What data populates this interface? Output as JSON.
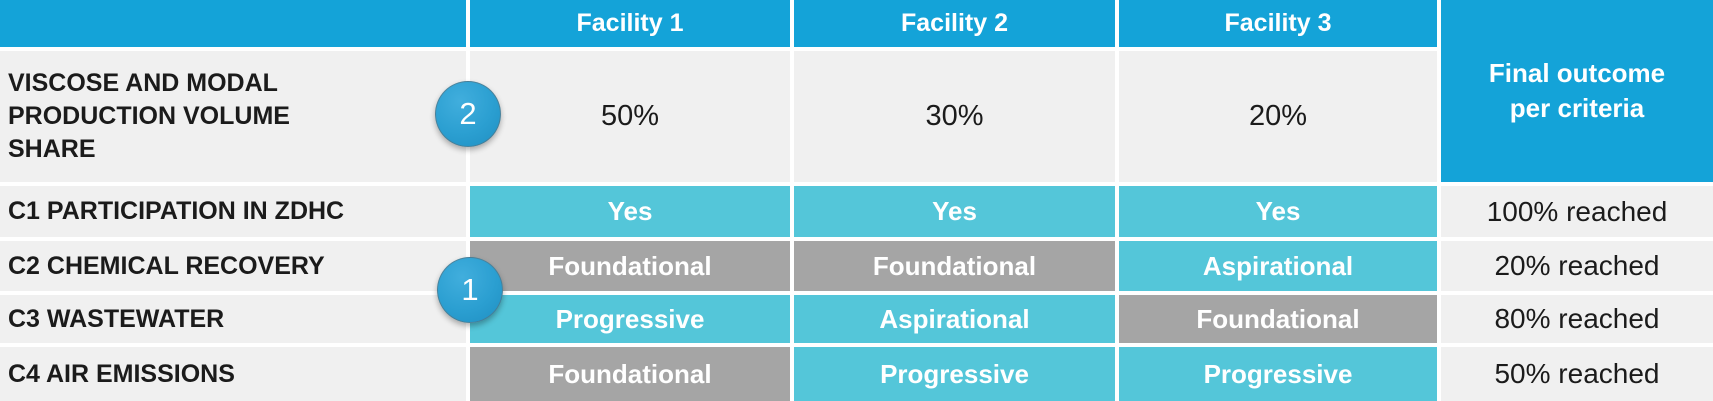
{
  "table": {
    "corner": "",
    "facility_headers": [
      "Facility 1",
      "Facility 2",
      "Facility 3"
    ],
    "final_header": "Final outcome\nper criteria",
    "volume_row": {
      "label": "VISCOSE AND MODAL\nPRODUCTION VOLUME\nSHARE",
      "values": [
        "50%",
        "30%",
        "20%"
      ]
    },
    "criteria_rows": [
      {
        "label": "C1 PARTICIPATION IN ZDHC",
        "cells": [
          {
            "text": "Yes",
            "variant": "teal"
          },
          {
            "text": "Yes",
            "variant": "teal"
          },
          {
            "text": "Yes",
            "variant": "teal"
          }
        ],
        "outcome": "100% reached"
      },
      {
        "label": "C2 CHEMICAL RECOVERY",
        "cells": [
          {
            "text": "Foundational",
            "variant": "gray"
          },
          {
            "text": "Foundational",
            "variant": "gray"
          },
          {
            "text": "Aspirational",
            "variant": "teal"
          }
        ],
        "outcome": "20% reached"
      },
      {
        "label": "C3 WASTEWATER",
        "cells": [
          {
            "text": "Progressive",
            "variant": "teal"
          },
          {
            "text": "Aspirational",
            "variant": "teal"
          },
          {
            "text": "Foundational",
            "variant": "gray"
          }
        ],
        "outcome": "80% reached"
      },
      {
        "label": "C4 AIR EMISSIONS",
        "cells": [
          {
            "text": "Foundational",
            "variant": "gray"
          },
          {
            "text": "Progressive",
            "variant": "teal"
          },
          {
            "text": "Progressive",
            "variant": "teal"
          }
        ],
        "outcome": "50% reached"
      }
    ],
    "badges": [
      {
        "label": "1"
      },
      {
        "label": "2"
      }
    ]
  },
  "colors": {
    "header_blue": "#14a3d8",
    "status_teal": "#54c6d9",
    "status_gray": "#a5a5a5",
    "row_bg": "#f0f0f0",
    "badge_blue": "#2b9fd1",
    "text_dark": "#1b1b1b",
    "text_white": "#ffffff"
  }
}
